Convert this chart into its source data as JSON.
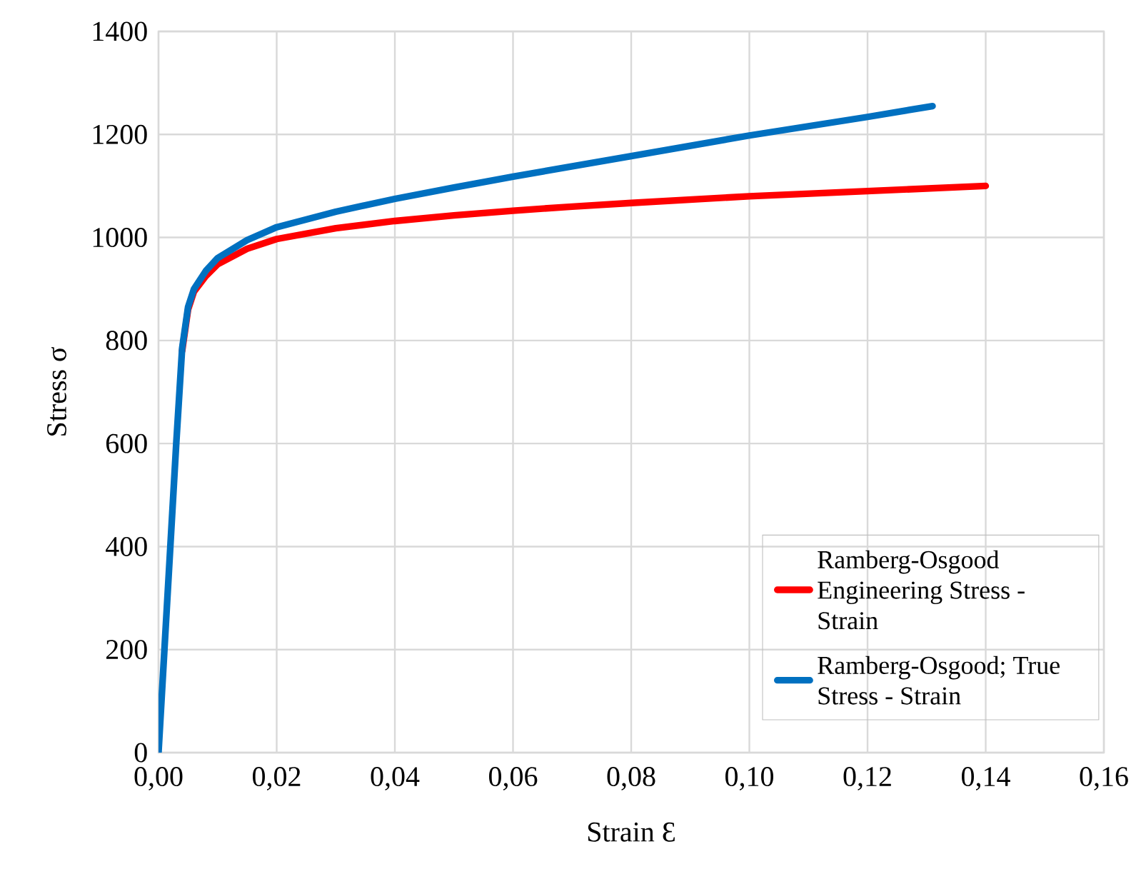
{
  "chart_data": {
    "type": "line",
    "xlabel": "Strain Ɛ",
    "ylabel": "Stress σ",
    "xlim": [
      0,
      0.16
    ],
    "ylim": [
      0,
      1400
    ],
    "xticks": [
      {
        "value": 0,
        "label": "0,00"
      },
      {
        "value": 0.02,
        "label": "0,02"
      },
      {
        "value": 0.04,
        "label": "0,04"
      },
      {
        "value": 0.06,
        "label": "0,06"
      },
      {
        "value": 0.08,
        "label": "0,08"
      },
      {
        "value": 0.1,
        "label": "0,10"
      },
      {
        "value": 0.12,
        "label": "0,12"
      },
      {
        "value": 0.14,
        "label": "0,14"
      },
      {
        "value": 0.16,
        "label": "0,16"
      }
    ],
    "yticks": [
      0,
      200,
      400,
      600,
      800,
      1000,
      1200,
      1400
    ],
    "grid": true,
    "legend": "bottom right",
    "marker": "none",
    "line_style": "solid",
    "series": [
      {
        "name": "Ramberg-Osgood Engineering Stress - Strain",
        "color": "#ff0000",
        "x": [
          0.004,
          0.005,
          0.006,
          0.008,
          0.01,
          0.015,
          0.02,
          0.03,
          0.04,
          0.05,
          0.06,
          0.07,
          0.08,
          0.1,
          0.12,
          0.14
        ],
        "values": [
          780,
          860,
          895,
          925,
          948,
          978,
          997,
          1018,
          1032,
          1043,
          1052,
          1060,
          1067,
          1080,
          1090,
          1100
        ]
      },
      {
        "name": "Ramberg-Osgood; True Stress - Strain",
        "color": "#0070c0",
        "x": [
          0,
          0.001,
          0.002,
          0.003,
          0.004,
          0.005,
          0.006,
          0.008,
          0.01,
          0.015,
          0.02,
          0.03,
          0.04,
          0.05,
          0.06,
          0.08,
          0.1,
          0.12,
          0.131
        ],
        "values": [
          0,
          200,
          400,
          600,
          785,
          865,
          900,
          935,
          960,
          995,
          1020,
          1050,
          1075,
          1097,
          1118,
          1158,
          1198,
          1234,
          1255
        ]
      }
    ]
  }
}
